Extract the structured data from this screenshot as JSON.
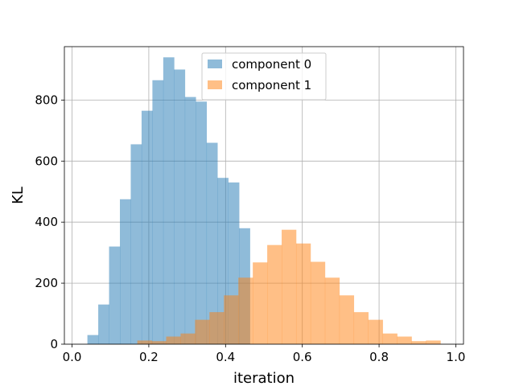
{
  "chart_data": {
    "type": "histogram",
    "title": "",
    "xlabel": "iteration",
    "ylabel": "KL",
    "xlim": [
      -0.02,
      1.02
    ],
    "ylim": [
      0,
      975
    ],
    "grid": true,
    "legend_position": "top-center",
    "x_ticks": [
      {
        "value": 0.0,
        "label": "0.0"
      },
      {
        "value": 0.2,
        "label": "0.2"
      },
      {
        "value": 0.4,
        "label": "0.4"
      },
      {
        "value": 0.6,
        "label": "0.6"
      },
      {
        "value": 0.8,
        "label": "0.8"
      },
      {
        "value": 1.0,
        "label": "1.0"
      }
    ],
    "y_ticks": [
      {
        "value": 0,
        "label": "0"
      },
      {
        "value": 200,
        "label": "200"
      },
      {
        "value": 400,
        "label": "400"
      },
      {
        "value": 600,
        "label": "600"
      },
      {
        "value": 800,
        "label": "800"
      }
    ],
    "series": [
      {
        "name": "component 0",
        "color": "#1f77b4",
        "opacity": 0.5,
        "range": [
          0.04,
          0.52
        ],
        "counts": [
          30,
          130,
          320,
          475,
          655,
          765,
          865,
          940,
          900,
          810,
          795,
          660,
          545,
          530,
          380,
          0,
          0
        ]
      },
      {
        "name": "component 1",
        "color": "#ff7f0e",
        "opacity": 0.5,
        "range": [
          0.17,
          0.96
        ],
        "counts": [
          12,
          10,
          25,
          35,
          80,
          105,
          160,
          218,
          268,
          325,
          375,
          330,
          270,
          218,
          160,
          105,
          80,
          35,
          25,
          10,
          12
        ]
      }
    ]
  }
}
